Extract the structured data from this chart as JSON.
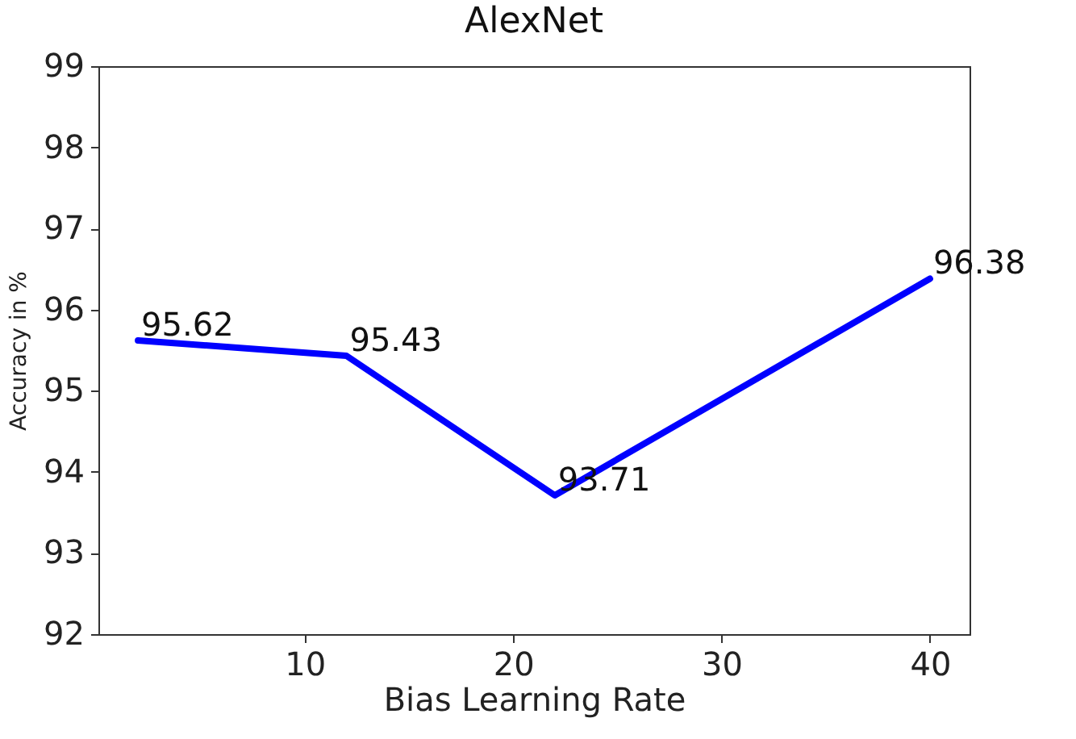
{
  "chart_data": {
    "type": "line",
    "title": "AlexNet",
    "xlabel": "Bias Learning Rate",
    "ylabel": "Accuracy in %",
    "x": [
      2,
      12,
      22,
      40
    ],
    "series": [
      {
        "color": "#0000ff",
        "values": [
          95.62,
          95.43,
          93.71,
          96.38
        ]
      }
    ],
    "xlim": [
      0.1,
      41.9
    ],
    "xticks": [
      10,
      20,
      30,
      40
    ],
    "ylim": [
      92,
      99
    ],
    "yticks": [
      92,
      93,
      94,
      95,
      96,
      97,
      98,
      99
    ],
    "grid": false,
    "data_labels": true,
    "marker": "none",
    "line_style": "solid"
  }
}
